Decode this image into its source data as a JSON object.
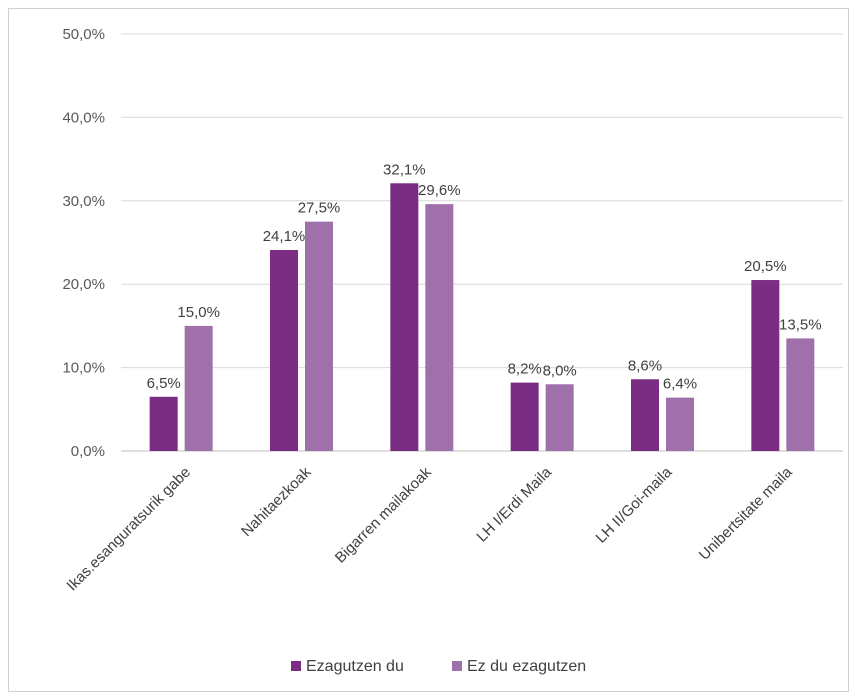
{
  "chart_data": {
    "type": "bar",
    "categories": [
      "Ikas.esanguratsurik gabe",
      "Nahitaezkoak",
      "Bigarren mailakoak",
      "LH I/Erdi Maila",
      "LH II/Goi-maila",
      "Unibertsitate maila"
    ],
    "series": [
      {
        "name": "Ezagutzen du",
        "color": "#7b2c83",
        "values": [
          6.5,
          24.1,
          32.1,
          8.2,
          8.6,
          20.5
        ],
        "labels": [
          "6,5%",
          "24,1%",
          "32,1%",
          "8,2%",
          "8,6%",
          "20,5%"
        ]
      },
      {
        "name": "Ez du ezagutzen",
        "color": "#a070aa",
        "values": [
          15.0,
          27.5,
          29.6,
          8.0,
          6.4,
          13.5
        ],
        "labels": [
          "15,0%",
          "27,5%",
          "29,6%",
          "8,0%",
          "6,4%",
          "13,5%"
        ]
      }
    ],
    "yticks": [
      0,
      10,
      20,
      30,
      40,
      50
    ],
    "ytick_labels": [
      "0,0%",
      "10,0%",
      "20,0%",
      "30,0%",
      "40,0%",
      "50,0%"
    ],
    "ylim": [
      0,
      50
    ],
    "grid": true,
    "legend_position": "bottom"
  }
}
